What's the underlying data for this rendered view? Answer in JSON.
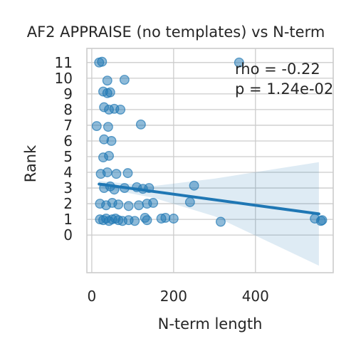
{
  "chart_data": {
    "type": "scatter",
    "title": "AF2 APPRAISE (no templates) vs N-term",
    "xlabel": "N-term length",
    "ylabel": "Rank",
    "xlim": [
      -12,
      590
    ],
    "ylim": [
      -2.4,
      11.9
    ],
    "xticks": [
      "0",
      "200",
      "400"
    ],
    "yticks": [
      "0",
      "1",
      "2",
      "3",
      "4",
      "5",
      "6",
      "7",
      "8",
      "9",
      "10",
      "11"
    ],
    "grid": true,
    "annotations": [
      "rho = -0.22",
      "p = 1.24e-02"
    ],
    "colors": {
      "points": "#1f77b4",
      "fit": "#1f77b4",
      "band": "#1f77b4",
      "grid": "#cccccc",
      "spine": "#cccccc"
    },
    "regression": {
      "x": [
        18,
        555
      ],
      "y": [
        3.25,
        1.35
      ],
      "ci": [
        [
          18,
          3.45,
          3.05
        ],
        [
          150,
          3.12,
          2.38
        ],
        [
          300,
          3.6,
          1.2
        ],
        [
          555,
          4.65,
          -1.95
        ]
      ]
    },
    "points": [
      {
        "x": 18,
        "y": 11.0
      },
      {
        "x": 25,
        "y": 11.05
      },
      {
        "x": 360,
        "y": 11.0
      },
      {
        "x": 38,
        "y": 9.85
      },
      {
        "x": 80,
        "y": 9.9
      },
      {
        "x": 28,
        "y": 9.15
      },
      {
        "x": 38,
        "y": 9.05
      },
      {
        "x": 45,
        "y": 9.1
      },
      {
        "x": 30,
        "y": 8.15
      },
      {
        "x": 42,
        "y": 8.0
      },
      {
        "x": 55,
        "y": 8.05
      },
      {
        "x": 70,
        "y": 8.0
      },
      {
        "x": 12,
        "y": 6.95
      },
      {
        "x": 40,
        "y": 6.9
      },
      {
        "x": 120,
        "y": 7.05
      },
      {
        "x": 30,
        "y": 6.1
      },
      {
        "x": 48,
        "y": 6.0
      },
      {
        "x": 28,
        "y": 4.95
      },
      {
        "x": 42,
        "y": 5.05
      },
      {
        "x": 22,
        "y": 3.9
      },
      {
        "x": 38,
        "y": 4.0
      },
      {
        "x": 60,
        "y": 3.9
      },
      {
        "x": 88,
        "y": 3.95
      },
      {
        "x": 30,
        "y": 3.0
      },
      {
        "x": 45,
        "y": 3.1
      },
      {
        "x": 55,
        "y": 2.9
      },
      {
        "x": 80,
        "y": 3.0
      },
      {
        "x": 110,
        "y": 3.05
      },
      {
        "x": 125,
        "y": 2.95
      },
      {
        "x": 140,
        "y": 3.0
      },
      {
        "x": 250,
        "y": 3.15
      },
      {
        "x": 20,
        "y": 2.0
      },
      {
        "x": 35,
        "y": 1.9
      },
      {
        "x": 50,
        "y": 2.05
      },
      {
        "x": 65,
        "y": 1.95
      },
      {
        "x": 90,
        "y": 1.85
      },
      {
        "x": 115,
        "y": 1.9
      },
      {
        "x": 135,
        "y": 2.0
      },
      {
        "x": 150,
        "y": 2.05
      },
      {
        "x": 240,
        "y": 2.1
      },
      {
        "x": 20,
        "y": 1.0
      },
      {
        "x": 28,
        "y": 0.95
      },
      {
        "x": 35,
        "y": 1.05
      },
      {
        "x": 42,
        "y": 0.9
      },
      {
        "x": 50,
        "y": 1.0
      },
      {
        "x": 58,
        "y": 1.05
      },
      {
        "x": 65,
        "y": 0.95
      },
      {
        "x": 75,
        "y": 0.9
      },
      {
        "x": 90,
        "y": 0.95
      },
      {
        "x": 105,
        "y": 0.9
      },
      {
        "x": 130,
        "y": 1.1
      },
      {
        "x": 135,
        "y": 0.95
      },
      {
        "x": 170,
        "y": 1.05
      },
      {
        "x": 180,
        "y": 1.1
      },
      {
        "x": 200,
        "y": 1.05
      },
      {
        "x": 315,
        "y": 0.85
      },
      {
        "x": 545,
        "y": 1.05
      },
      {
        "x": 560,
        "y": 0.9
      },
      {
        "x": 563,
        "y": 0.95
      }
    ]
  }
}
